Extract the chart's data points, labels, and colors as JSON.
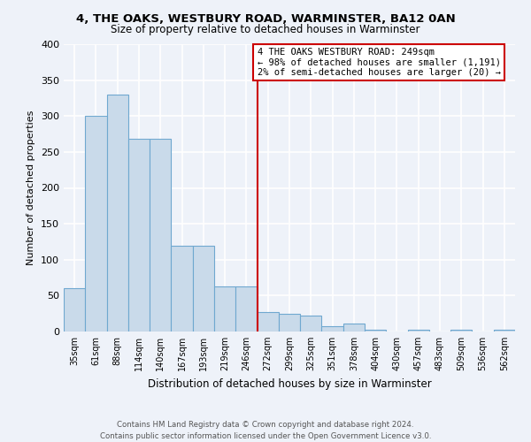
{
  "title": "4, THE OAKS, WESTBURY ROAD, WARMINSTER, BA12 0AN",
  "subtitle": "Size of property relative to detached houses in Warminster",
  "xlabel": "Distribution of detached houses by size in Warminster",
  "ylabel": "Number of detached properties",
  "footnote": "Contains HM Land Registry data © Crown copyright and database right 2024.\nContains public sector information licensed under the Open Government Licence v3.0.",
  "bin_labels": [
    "35sqm",
    "61sqm",
    "88sqm",
    "114sqm",
    "140sqm",
    "167sqm",
    "193sqm",
    "219sqm",
    "246sqm",
    "272sqm",
    "299sqm",
    "325sqm",
    "351sqm",
    "378sqm",
    "404sqm",
    "430sqm",
    "457sqm",
    "483sqm",
    "509sqm",
    "536sqm",
    "562sqm"
  ],
  "bar_values": [
    60,
    300,
    330,
    268,
    268,
    120,
    120,
    63,
    63,
    27,
    25,
    22,
    7,
    11,
    3,
    0,
    3,
    0,
    2,
    0,
    3
  ],
  "marker_bin": 8,
  "marker_label_line1": "4 THE OAKS WESTBURY ROAD: 249sqm",
  "marker_label_line2": "← 98% of detached houses are smaller (1,191)",
  "marker_label_line3": "2% of semi-detached houses are larger (20) →",
  "bar_color": "#c9daea",
  "bar_edge_color": "#6fa8d0",
  "marker_color": "#cc0000",
  "bg_color": "#eef2f9",
  "grid_color": "#ffffff",
  "ylim": [
    0,
    400
  ],
  "yticks": [
    0,
    50,
    100,
    150,
    200,
    250,
    300,
    350,
    400
  ]
}
